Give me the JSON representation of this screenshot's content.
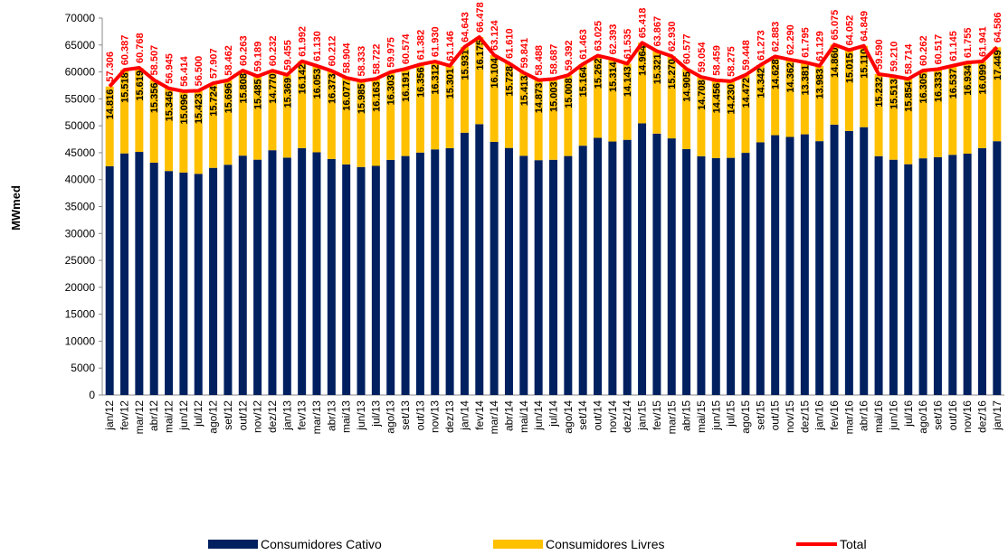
{
  "chart_data": {
    "type": "bar",
    "stacked": true,
    "y_label": "MWmed",
    "categories": [
      "jan/12",
      "fev/12",
      "mar/12",
      "abr/12",
      "mai/12",
      "jun/12",
      "jul/12",
      "ago/12",
      "set/12",
      "out/12",
      "nov/12",
      "dez/12",
      "jan/13",
      "fev/13",
      "mar/13",
      "abr/13",
      "mai/13",
      "jun/13",
      "jul/13",
      "ago/13",
      "set/13",
      "out/13",
      "nov/13",
      "dez/13",
      "jan/14",
      "fev/14",
      "mar/14",
      "abr/14",
      "mai/14",
      "jun/14",
      "jul/14",
      "ago/14",
      "set/14",
      "out/14",
      "nov/14",
      "dez/14",
      "jan/15",
      "fev/15",
      "mar/15",
      "abr/15",
      "mai/15",
      "jun/15",
      "jul/15",
      "ago/15",
      "set/15",
      "out/15",
      "nov/15",
      "dez/15",
      "jan/16",
      "fev/16",
      "mar/16",
      "abr/16",
      "mai/16",
      "jun/16",
      "jul/16",
      "ago/16",
      "set/16",
      "out/16",
      "nov/16",
      "dez/16",
      "jan/17"
    ],
    "series": [
      {
        "name": "Consumidores Cativo",
        "type": "bar",
        "color": "#002060",
        "values": [
          42490,
          44869,
          45149,
          43151,
          41599,
          41318,
          41077,
          42183,
          42766,
          44455,
          43704,
          45462,
          44086,
          45850,
          45077,
          43839,
          42827,
          42348,
          42559,
          43672,
          44383,
          45026,
          45618,
          45845,
          48712,
          50303,
          47020,
          45882,
          44428,
          43615,
          43684,
          44384,
          46299,
          47763,
          47079,
          47392,
          50454,
          48546,
          47660,
          45672,
          44346,
          44003,
          44045,
          44976,
          46931,
          48255,
          47928,
          48414,
          47146,
          50215,
          49037,
          49739,
          44358,
          43697,
          42860,
          43957,
          44184,
          44608,
          44821,
          45842,
          47137
        ]
      },
      {
        "name": "Consumidores Livres",
        "type": "bar",
        "color": "#FFC000",
        "values": [
          14816,
          15518,
          15619,
          15356,
          15346,
          15096,
          15423,
          15724,
          15696,
          15808,
          15485,
          14770,
          15369,
          16142,
          16053,
          16373,
          16077,
          15985,
          16163,
          16303,
          16191,
          16356,
          16312,
          15301,
          15931,
          16175,
          16104,
          15728,
          15413,
          14873,
          15003,
          15008,
          15164,
          15262,
          15314,
          14143,
          14964,
          15321,
          15270,
          14905,
          14708,
          14456,
          14230,
          14472,
          14342,
          14628,
          14362,
          13381,
          13983,
          14860,
          15015,
          15110,
          15232,
          15513,
          15854,
          16305,
          16333,
          16537,
          16934,
          16099,
          17449
        ],
        "value_labels": [
          "14.816",
          "15.518",
          "15.619",
          "15.356",
          "15.346",
          "15.096",
          "15.423",
          "15.724",
          "15.696",
          "15.808",
          "15.485",
          "14.770",
          "15.369",
          "16.142",
          "16.053",
          "16.373",
          "16.077",
          "15.985",
          "16.163",
          "16.303",
          "16.191",
          "16.356",
          "16.312",
          "15.301",
          "15.931",
          "16.175",
          "16.104",
          "15.728",
          "15.413",
          "14.873",
          "15.003",
          "15.008",
          "15.164",
          "15.262",
          "15.314",
          "14.143",
          "14.964",
          "15.321",
          "15.270",
          "14.905",
          "14.708",
          "14.456",
          "14.230",
          "14.472",
          "14.342",
          "14.628",
          "14.362",
          "13.381",
          "13.983",
          "14.860",
          "15.015",
          "15.110",
          "15.232",
          "15.513",
          "15.854",
          "16.305",
          "16.333",
          "16.537",
          "16.934",
          "16.099",
          "17.449"
        ]
      },
      {
        "name": "Total",
        "type": "line",
        "color": "#FF0000",
        "values": [
          57306,
          60387,
          60768,
          58507,
          56945,
          56414,
          56500,
          57907,
          58462,
          60263,
          59189,
          60232,
          59455,
          61992,
          61130,
          60212,
          58904,
          58333,
          58722,
          59975,
          60574,
          61382,
          61930,
          61146,
          64643,
          66478,
          63124,
          61610,
          59841,
          58488,
          58687,
          59392,
          61463,
          63025,
          62393,
          61535,
          65418,
          63867,
          62930,
          60577,
          59054,
          58459,
          58275,
          59448,
          61273,
          62883,
          62290,
          61795,
          61129,
          65075,
          64052,
          64849,
          59590,
          59210,
          58714,
          60262,
          60517,
          61145,
          61755,
          61941,
          64586
        ],
        "value_labels": [
          "57.306",
          "60.387",
          "60.768",
          "58.507",
          "56.945",
          "56.414",
          "56.500",
          "57.907",
          "58.462",
          "60.263",
          "59.189",
          "60.232",
          "59.455",
          "61.992",
          "61.130",
          "60.212",
          "58.904",
          "58.333",
          "58.722",
          "59.975",
          "60.574",
          "61.382",
          "61.930",
          "61.146",
          "64.643",
          "66.478",
          "63.124",
          "61.610",
          "59.841",
          "58.488",
          "58.687",
          "59.392",
          "61.463",
          "63.025",
          "62.393",
          "61.535",
          "65.418",
          "63.867",
          "62.930",
          "60.577",
          "59.054",
          "58.459",
          "58.275",
          "59.448",
          "61.273",
          "62.883",
          "62.290",
          "61.795",
          "61.129",
          "65.075",
          "64.052",
          "64.849",
          "59.590",
          "59.210",
          "58.714",
          "60.262",
          "60.517",
          "61.145",
          "61.755",
          "61.941",
          "64.586"
        ]
      }
    ],
    "ylim": [
      0,
      70000
    ],
    "yticks": [
      0,
      5000,
      10000,
      15000,
      20000,
      25000,
      30000,
      35000,
      40000,
      45000,
      50000,
      55000,
      60000,
      65000,
      70000
    ],
    "legend": "bottom"
  }
}
